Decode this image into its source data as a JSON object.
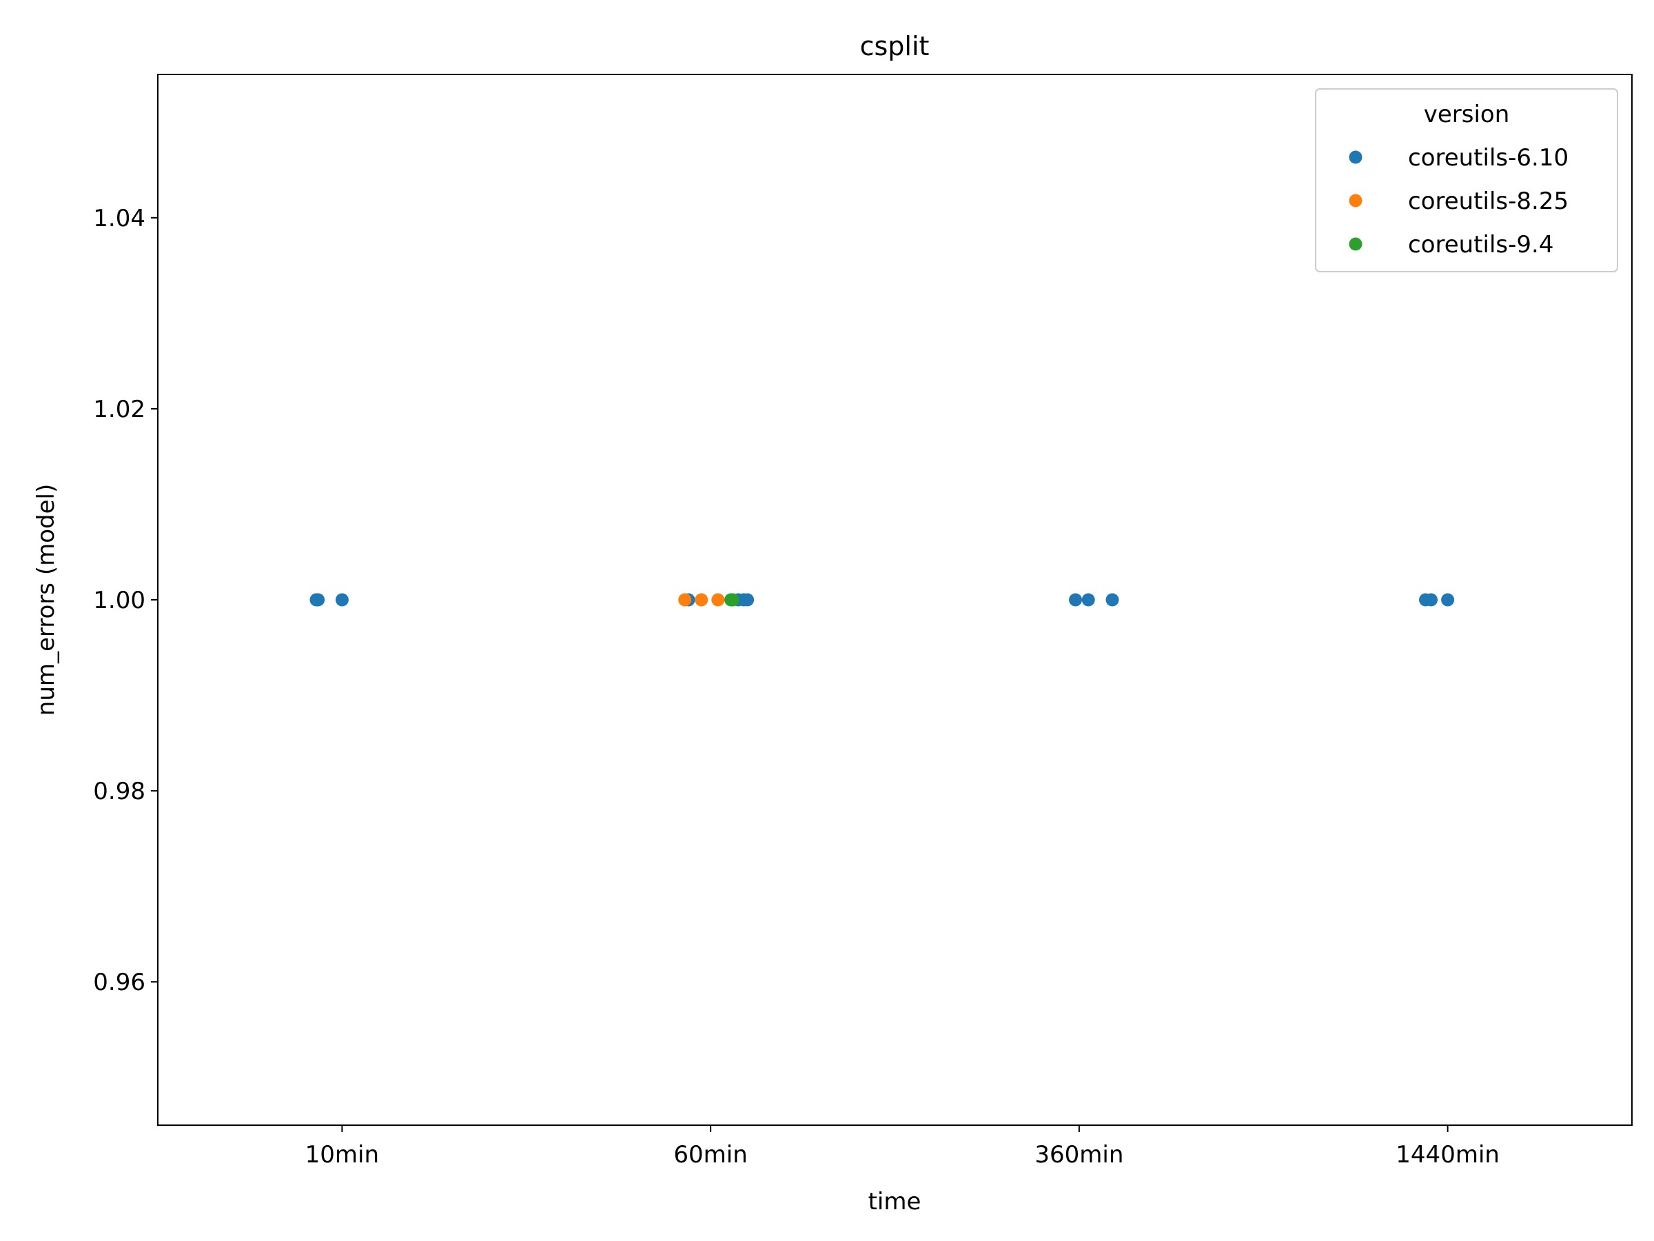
{
  "chart_data": {
    "type": "scatter",
    "title": "csplit",
    "xlabel": "time",
    "ylabel": "num_errors (model)",
    "categories": [
      "10min",
      "60min",
      "360min",
      "1440min"
    ],
    "ylim": [
      0.945,
      1.055
    ],
    "yticks": [
      "0.96",
      "0.98",
      "1.00",
      "1.02",
      "1.04"
    ],
    "grid": false,
    "legend": {
      "title": "version",
      "placement": "top-right"
    },
    "series": [
      {
        "name": "coreutils-6.10",
        "color": "#1f77b4",
        "points": [
          {
            "category": "10min",
            "jitter": -0.07,
            "y": 1.0
          },
          {
            "category": "10min",
            "jitter": -0.065,
            "y": 1.0
          },
          {
            "category": "10min",
            "jitter": 0.0,
            "y": 1.0
          },
          {
            "category": "60min",
            "jitter": -0.06,
            "y": 1.0
          },
          {
            "category": "60min",
            "jitter": 0.075,
            "y": 1.0
          },
          {
            "category": "60min",
            "jitter": 0.09,
            "y": 1.0
          },
          {
            "category": "60min",
            "jitter": 0.1,
            "y": 1.0
          },
          {
            "category": "360min",
            "jitter": -0.01,
            "y": 1.0
          },
          {
            "category": "360min",
            "jitter": 0.025,
            "y": 1.0
          },
          {
            "category": "360min",
            "jitter": 0.09,
            "y": 1.0
          },
          {
            "category": "1440min",
            "jitter": -0.06,
            "y": 1.0
          },
          {
            "category": "1440min",
            "jitter": -0.045,
            "y": 1.0
          },
          {
            "category": "1440min",
            "jitter": 0.0,
            "y": 1.0
          }
        ]
      },
      {
        "name": "coreutils-8.25",
        "color": "#ff7f0e",
        "points": [
          {
            "category": "60min",
            "jitter": -0.07,
            "y": 1.0
          },
          {
            "category": "60min",
            "jitter": -0.025,
            "y": 1.0
          },
          {
            "category": "60min",
            "jitter": 0.02,
            "y": 1.0
          }
        ]
      },
      {
        "name": "coreutils-9.4",
        "color": "#2ca02c",
        "points": [
          {
            "category": "60min",
            "jitter": 0.055,
            "y": 1.0
          },
          {
            "category": "60min",
            "jitter": 0.06,
            "y": 1.0
          }
        ]
      }
    ]
  }
}
